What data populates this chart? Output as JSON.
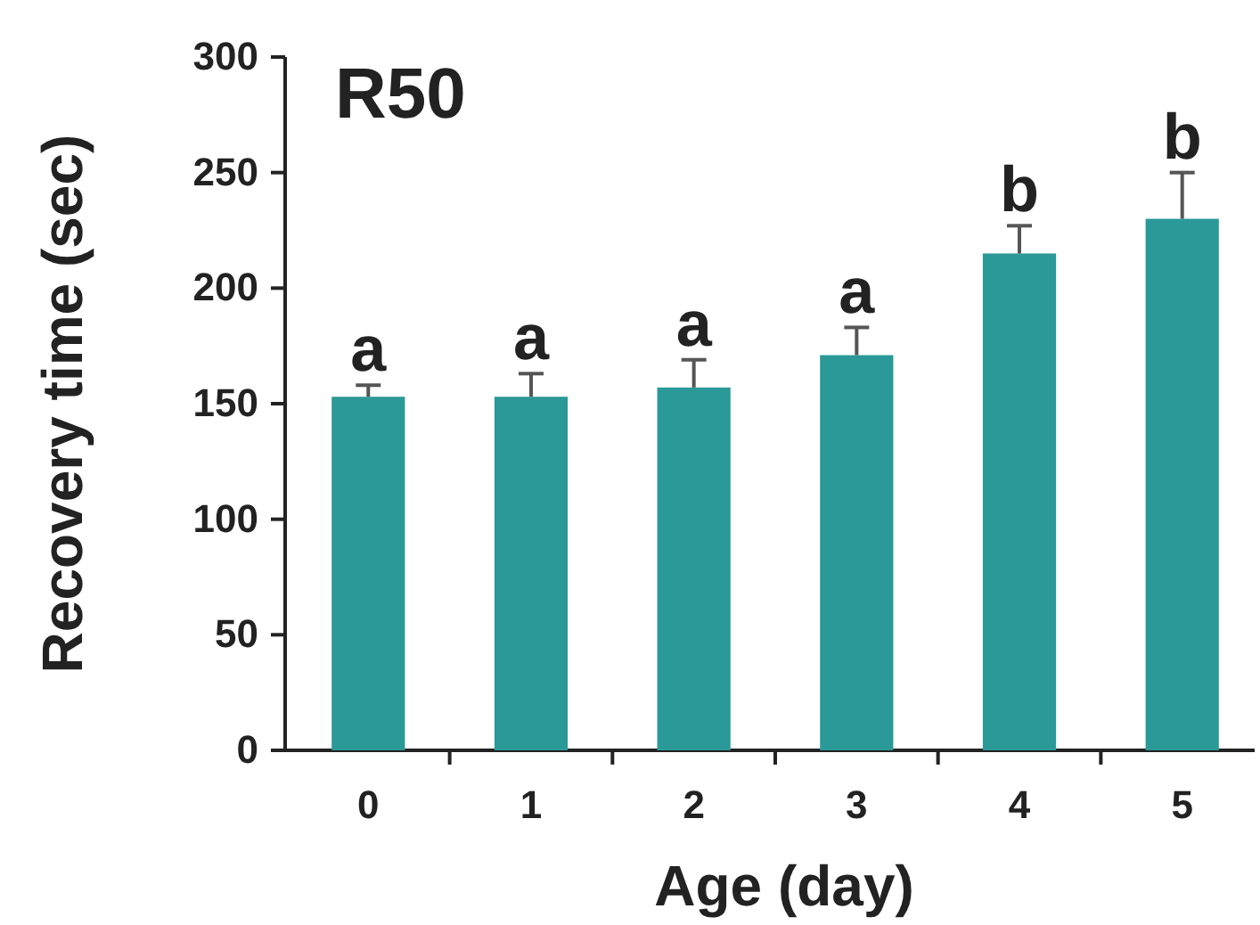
{
  "chart_data": {
    "type": "bar",
    "title": "R50",
    "xlabel": "Age (day)",
    "ylabel": "Recovery time (sec)",
    "categories": [
      "0",
      "1",
      "2",
      "3",
      "4",
      "5"
    ],
    "values": [
      153,
      153,
      157,
      171,
      215,
      230
    ],
    "errors": [
      [
        153,
        158
      ],
      [
        153,
        163
      ],
      [
        157,
        169
      ],
      [
        171,
        183
      ],
      [
        215,
        227
      ],
      [
        230,
        250
      ]
    ],
    "color": "#2a9998",
    "ylim": [
      0,
      300
    ],
    "yticks": [
      0,
      50,
      100,
      150,
      200,
      250,
      300
    ],
    "grid": false,
    "annotations": [
      {
        "text": "a",
        "x": "0",
        "y": 158
      },
      {
        "text": "a",
        "x": "1",
        "y": 163
      },
      {
        "text": "a",
        "x": "2",
        "y": 169
      },
      {
        "text": "a",
        "x": "3",
        "y": 183
      },
      {
        "text": "b",
        "x": "4",
        "y": 227
      },
      {
        "text": "b",
        "x": "5",
        "y": 250
      }
    ]
  }
}
